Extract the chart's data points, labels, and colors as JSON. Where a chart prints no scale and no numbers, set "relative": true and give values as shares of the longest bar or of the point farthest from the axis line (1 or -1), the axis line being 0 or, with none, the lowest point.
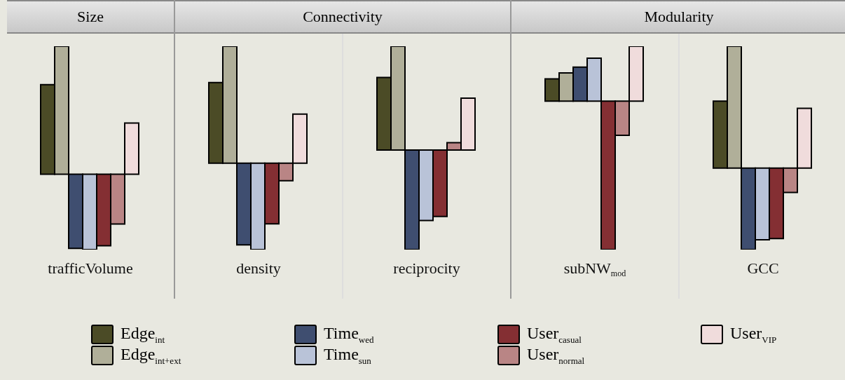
{
  "chart_data": [
    {
      "type": "bar",
      "title": "Size",
      "categories": [
        "trafficVolume"
      ],
      "relative": true,
      "legend": "bottom",
      "series": [
        {
          "name": "Edge$_{int}$",
          "color": "#4b4b26",
          "values": [
            0.7
          ]
        },
        {
          "name": "Edge$_{int+ext}$",
          "color": "#b0af99",
          "values": [
            1
          ]
        },
        {
          "name": "Time$_{wed}$",
          "color": "#3f4e70",
          "values": [
            -0.58
          ]
        },
        {
          "name": "Time$_{sun}$",
          "color": "#b9c3d8",
          "values": [
            -0.59
          ]
        },
        {
          "name": "User$_{casual}$",
          "color": "#842f33",
          "values": [
            -0.56
          ]
        },
        {
          "name": "User$_{normal}$",
          "color": "#b98585",
          "values": [
            -0.39
          ]
        },
        {
          "name": "User$_{VIP}$",
          "color": "#f0dcdc",
          "values": [
            0.4
          ]
        }
      ]
    },
    {
      "type": "bar",
      "title": "Connectivity",
      "categories": [
        "density"
      ],
      "relative": true,
      "series": [
        {
          "color": "#4b4b26",
          "values": [
            0.69
          ]
        },
        {
          "color": "#b0af99",
          "values": [
            1
          ]
        },
        {
          "color": "#3f4e70",
          "values": [
            -0.7
          ]
        },
        {
          "color": "#b9c3d8",
          "values": [
            -0.74
          ]
        },
        {
          "color": "#842f33",
          "values": [
            -0.52
          ]
        },
        {
          "color": "#b98585",
          "values": [
            -0.15
          ]
        },
        {
          "color": "#f0dcdc",
          "values": [
            0.42
          ]
        }
      ]
    },
    {
      "type": "bar",
      "categories": [
        "reciprocity"
      ],
      "relative": true,
      "series": [
        {
          "color": "#4b4b26",
          "values": [
            0.7
          ]
        },
        {
          "color": "#b0af99",
          "values": [
            1
          ]
        },
        {
          "color": "#3f4e70",
          "values": [
            -0.96
          ]
        },
        {
          "color": "#b9c3d8",
          "values": [
            -0.68
          ]
        },
        {
          "color": "#842f33",
          "values": [
            -0.64
          ]
        },
        {
          "color": "#b98585",
          "values": [
            0.07
          ]
        },
        {
          "color": "#f0dcdc",
          "values": [
            0.5
          ]
        }
      ]
    },
    {
      "type": "bar",
      "title": "Modularity",
      "categories": [
        "subNW$_{mod}$"
      ],
      "relative": true,
      "series": [
        {
          "color": "#4b4b26",
          "values": [
            0.15
          ]
        },
        {
          "color": "#b0af99",
          "values": [
            0.19
          ]
        },
        {
          "color": "#3f4e70",
          "values": [
            0.23
          ]
        },
        {
          "color": "#b9c3d8",
          "values": [
            0.29
          ]
        },
        {
          "color": "#842f33",
          "values": [
            -1
          ]
        },
        {
          "color": "#b98585",
          "values": [
            -0.23
          ]
        },
        {
          "color": "#f0dcdc",
          "values": [
            0.37
          ]
        }
      ]
    },
    {
      "type": "bar",
      "categories": [
        "GCC"
      ],
      "relative": true,
      "series": [
        {
          "color": "#4b4b26",
          "values": [
            0.55
          ]
        },
        {
          "color": "#b0af99",
          "values": [
            1
          ]
        },
        {
          "color": "#3f4e70",
          "values": [
            -0.67
          ]
        },
        {
          "color": "#b9c3d8",
          "values": [
            -0.59
          ]
        },
        {
          "color": "#842f33",
          "values": [
            -0.58
          ]
        },
        {
          "color": "#b98585",
          "values": [
            -0.2
          ]
        },
        {
          "color": "#f0dcdc",
          "values": [
            0.49
          ]
        }
      ]
    }
  ]
}
